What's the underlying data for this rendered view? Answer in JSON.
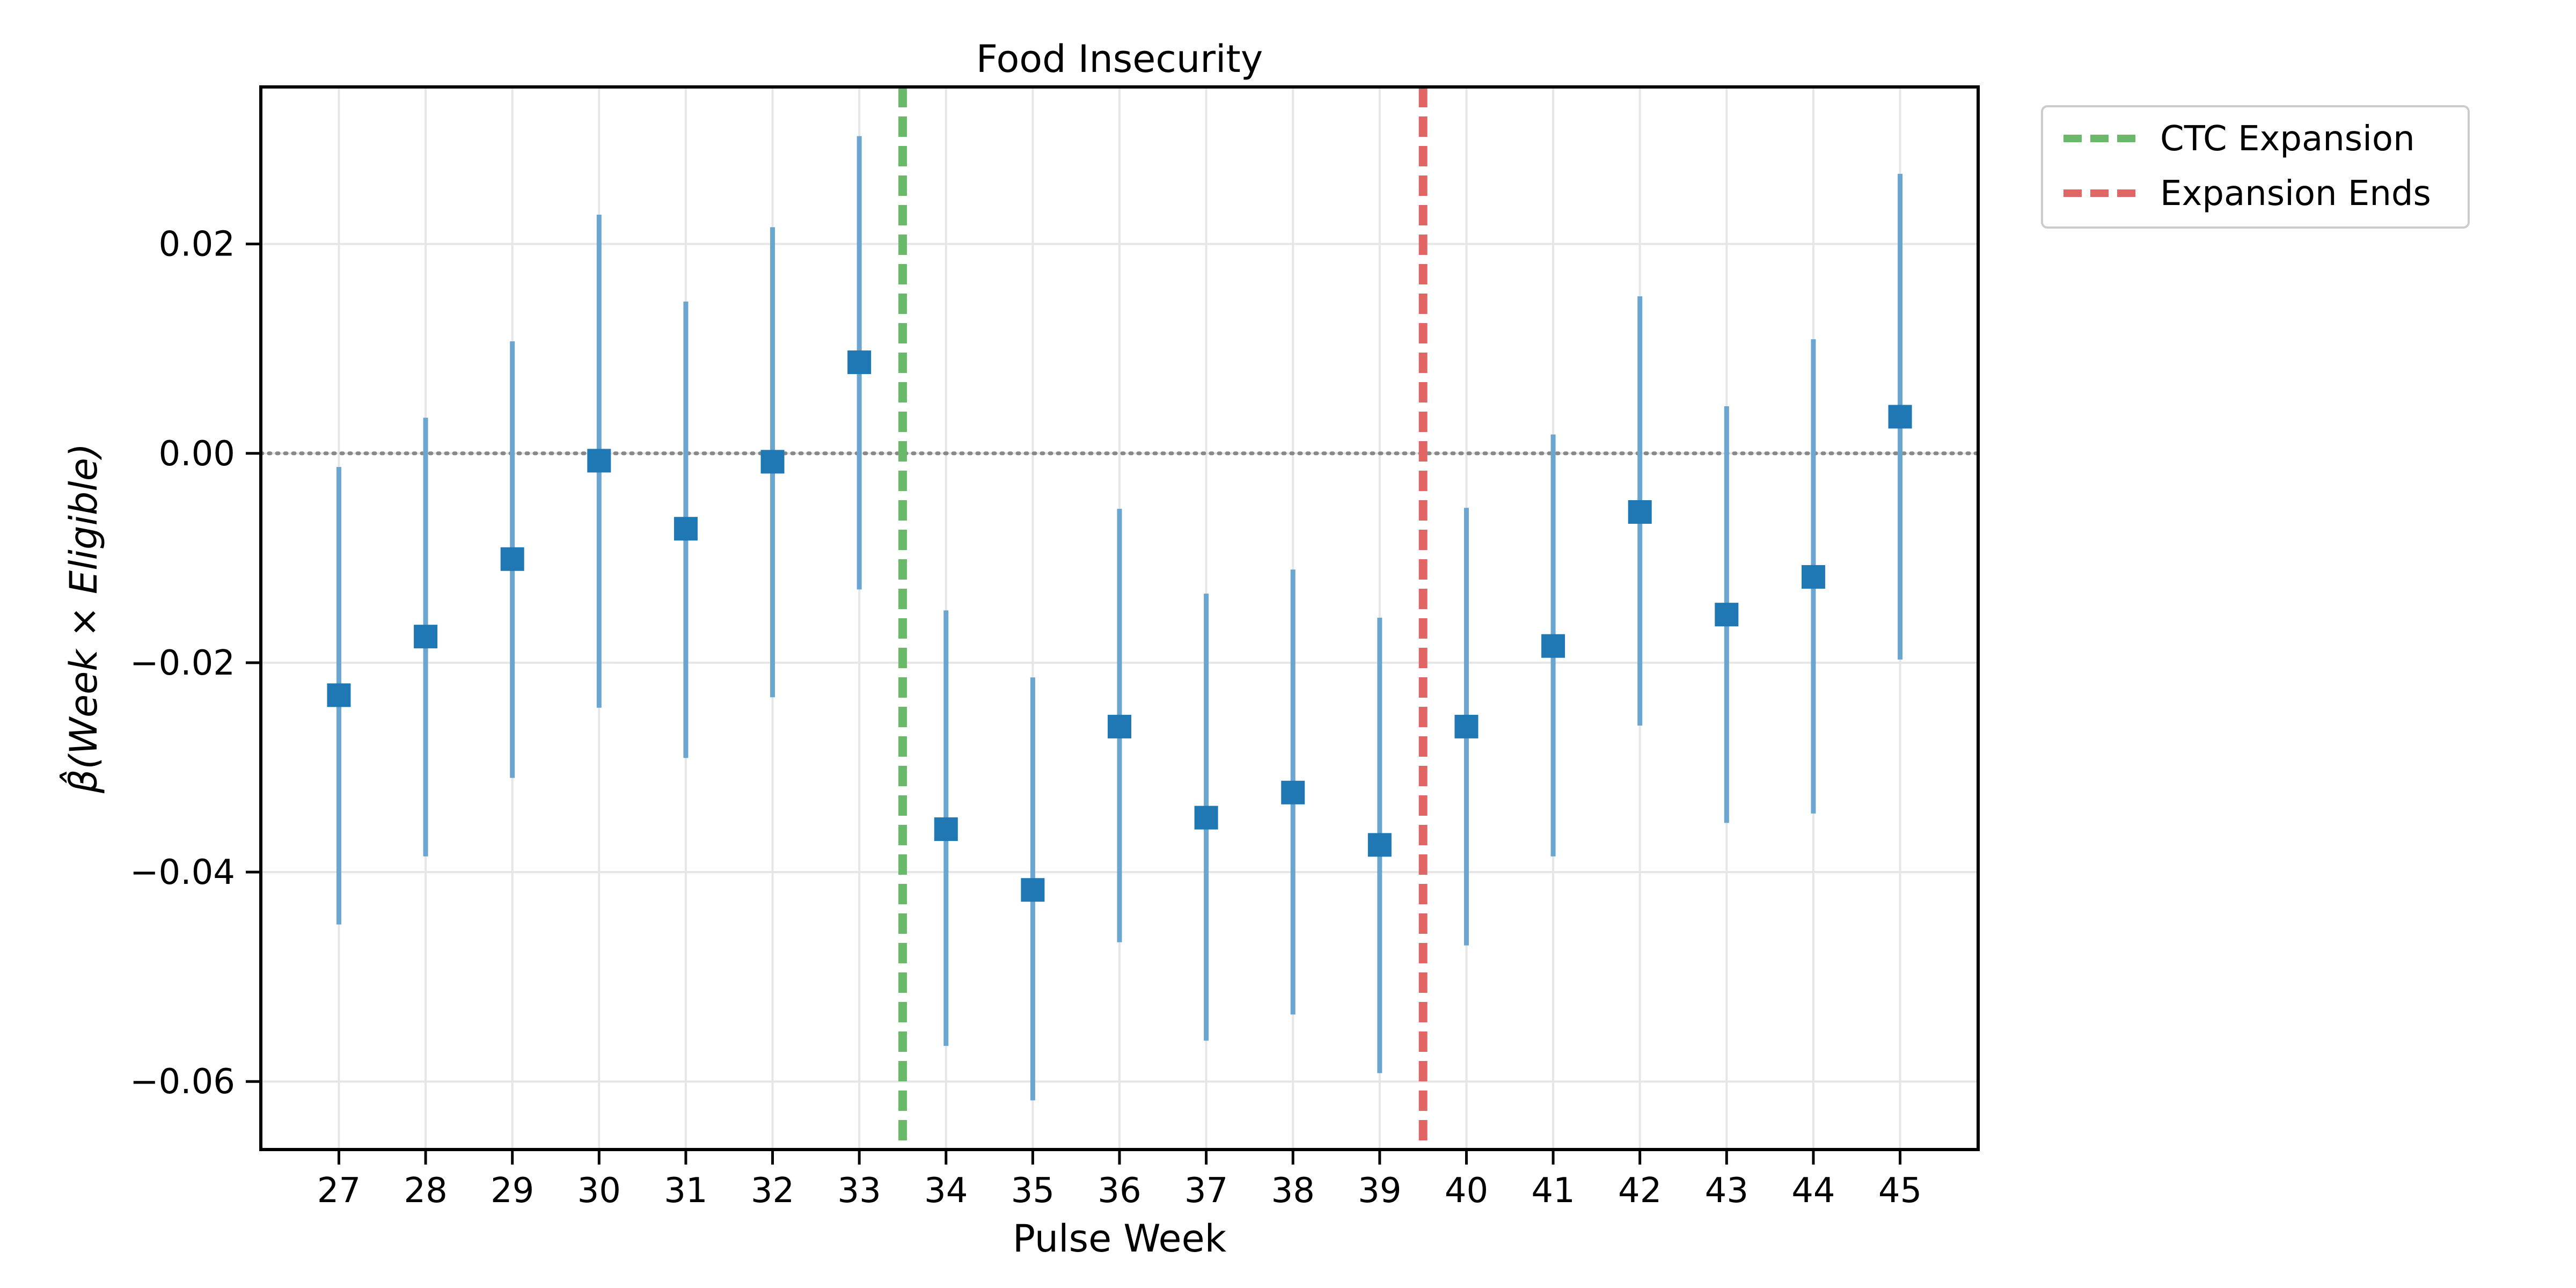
{
  "chart_data": {
    "type": "scatter",
    "title": "Food Insecurity",
    "xlabel": "Pulse Week",
    "ylabel": "β̂(Week × Eligible)",
    "x": [
      27,
      28,
      29,
      30,
      31,
      32,
      33,
      34,
      35,
      36,
      37,
      38,
      39,
      40,
      41,
      42,
      43,
      44,
      45
    ],
    "series": [
      {
        "y": [
          -0.0231,
          -0.0175,
          -0.0101,
          -0.0007,
          -0.0072,
          -0.0008,
          0.0087,
          -0.0359,
          -0.0417,
          -0.0261,
          -0.0348,
          -0.0324,
          -0.0374,
          -0.0261,
          -0.0184,
          -0.0056,
          -0.0154,
          -0.0118,
          0.0035
        ],
        "lower": [
          -0.045,
          -0.0385,
          -0.031,
          -0.0243,
          -0.0291,
          -0.0233,
          -0.013,
          -0.0566,
          -0.0618,
          -0.0467,
          -0.0561,
          -0.0536,
          -0.0592,
          -0.047,
          -0.0385,
          -0.026,
          -0.0353,
          -0.0344,
          -0.0197
        ],
        "upper": [
          -0.0013,
          0.0034,
          0.0107,
          0.0228,
          0.0145,
          0.0216,
          0.0303,
          -0.015,
          -0.0214,
          -0.0053,
          -0.0134,
          -0.0111,
          -0.0157,
          -0.0052,
          0.0018,
          0.015,
          0.0045,
          0.0109,
          0.0267
        ]
      }
    ],
    "ylim": [
      -0.0665,
      0.035
    ],
    "xlim": [
      26.1,
      45.9
    ],
    "yticks": [
      -0.06,
      -0.04,
      -0.02,
      0.0,
      0.02
    ],
    "ytick_labels": [
      "−0.06",
      "−0.04",
      "−0.02",
      "0.00",
      "0.02"
    ],
    "reference_lines": [
      {
        "type": "horizontal",
        "y": 0.0,
        "style": "dotted",
        "color": "#888888"
      },
      {
        "type": "vertical",
        "x": 33.5,
        "label": "CTC Expansion",
        "color": "#6ab96a",
        "style": "dashed"
      },
      {
        "type": "vertical",
        "x": 39.5,
        "label": "Expansion Ends",
        "color": "#e06666",
        "style": "dashed"
      }
    ],
    "grid": true,
    "legend_position": "outside-upper-right",
    "colors": {
      "marker": "#1f77b4",
      "errorbar": "#6aa6cf"
    }
  }
}
